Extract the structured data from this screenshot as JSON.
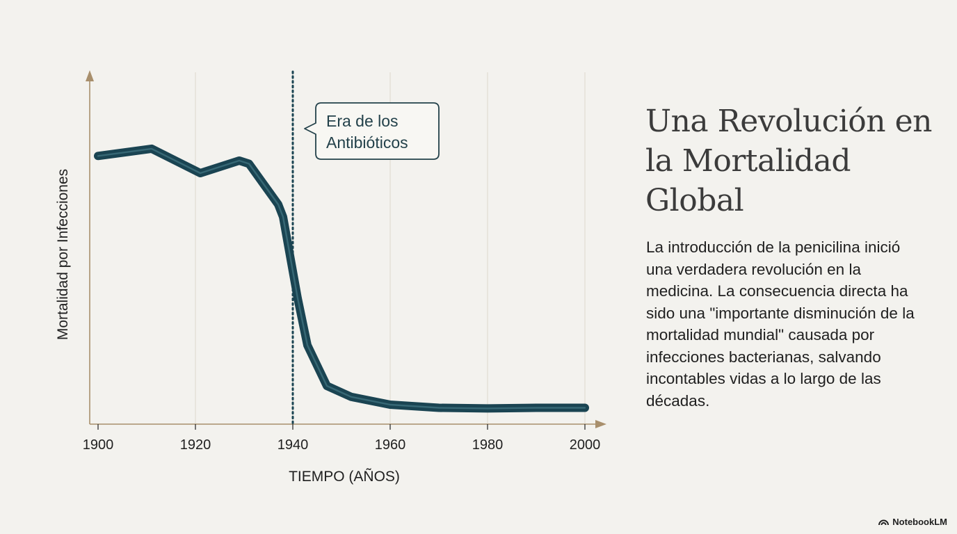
{
  "chart_data": {
    "type": "line",
    "xlabel": "TIEMPO (AÑOS)",
    "ylabel": "Mortalidad por Infecciones",
    "xlim": [
      1900,
      2000
    ],
    "ylim": [
      0,
      100
    ],
    "x_ticks": [
      1900,
      1920,
      1940,
      1960,
      1980,
      2000
    ],
    "grid": "vertical",
    "series": [
      {
        "x": [
          1900,
          1911,
          1921,
          1929,
          1931,
          1937,
          1938,
          1941,
          1943,
          1947,
          1952,
          1960,
          1970,
          1980,
          1990,
          2000
        ],
        "values": [
          85.5,
          87.8,
          80.0,
          84.0,
          83.0,
          70.0,
          66.0,
          40.0,
          25.0,
          12.0,
          8.5,
          6.0,
          5.0,
          4.8,
          5.0,
          5.0
        ],
        "color": "#1a4452"
      }
    ],
    "annotations": [
      {
        "type": "vertical-line",
        "x": 1940,
        "style": "dotted",
        "color": "#1a4452"
      },
      {
        "type": "callout",
        "text_lines": [
          "Era de los",
          "Antibióticos"
        ]
      }
    ]
  },
  "panel": {
    "title": "Una Revolución en la Mortalidad Global",
    "body": "La introducción de la penicilina inició una verdadera revolución en la medicina. La consecuencia directa ha sido una \"importante disminución de la mortalidad mundial\" causada por infecciones bacterianas, salvando incontables vidas a lo largo de las décadas."
  },
  "branding": {
    "label": "NotebookLM",
    "icon": "notebooklm-logo-icon"
  },
  "colors": {
    "background": "#f3f2ee",
    "axis": "#a88f6c",
    "line": "#1a4452",
    "grid": "#ddd8cc"
  }
}
